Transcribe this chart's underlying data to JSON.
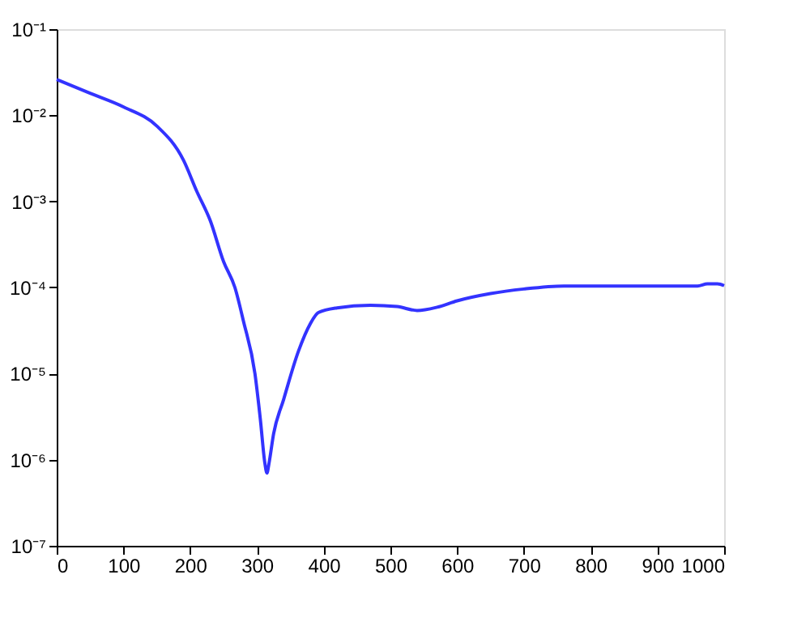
{
  "chart_data": {
    "type": "line",
    "log": "y",
    "grid": false,
    "marker": "none",
    "line_style": "solid",
    "xlim": [
      0,
      1000
    ],
    "xticks": [
      0,
      100,
      200,
      300,
      400,
      500,
      600,
      700,
      800,
      900,
      1000
    ],
    "ylim": [
      1e-07,
      0.1
    ],
    "yticks": [
      {
        "value": 1e-07,
        "label": "10⁻⁷"
      },
      {
        "value": 1e-06,
        "label": "10⁻⁶"
      },
      {
        "value": 1e-05,
        "label": "10⁻⁵"
      },
      {
        "value": 0.0001,
        "label": "10⁻⁴"
      },
      {
        "value": 0.001,
        "label": "10⁻³"
      },
      {
        "value": 0.01,
        "label": "10⁻²"
      },
      {
        "value": 0.1,
        "label": "10⁻¹"
      }
    ],
    "series": [
      {
        "color": "#3333ff",
        "x": [
          0,
          50,
          100,
          150,
          190,
          210,
          230,
          250,
          267,
          280,
          297,
          305,
          312,
          315,
          318,
          325,
          340,
          362,
          380,
          392,
          420,
          470,
          510,
          540,
          570,
          600,
          650,
          700,
          760,
          850,
          960,
          975,
          990,
          1000
        ],
        "values": [
          0.026,
          0.018,
          0.0125,
          0.0075,
          0.003,
          0.0013,
          0.0006,
          0.0002,
          0.0001,
          4e-05,
          1e-05,
          3e-06,
          9e-07,
          7e-07,
          9e-07,
          2e-06,
          5e-06,
          1.8e-05,
          3.8e-05,
          5.1e-05,
          5.8e-05,
          6.2e-05,
          6e-05,
          5.4e-05,
          5.9e-05,
          7e-05,
          8.5e-05,
          9.6e-05,
          0.000104,
          0.000104,
          0.000104,
          0.00011,
          0.00011,
          0.000105
        ]
      }
    ]
  }
}
